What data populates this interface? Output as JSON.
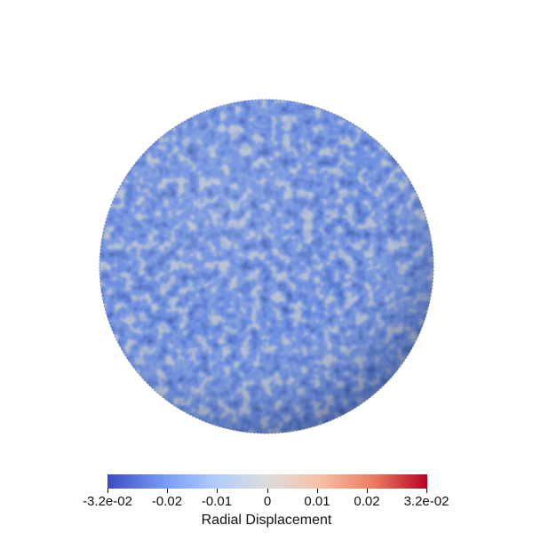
{
  "figure": {
    "type": "3d-surface-render",
    "subject": "sphere",
    "surface_texture": "labyrinthine wrinkle pattern",
    "background_color": "#ffffff"
  },
  "colorbar": {
    "title": "Radial Displacement",
    "orientation": "horizontal",
    "colormap": "Cool to Warm",
    "range": [
      -0.032,
      0.032
    ],
    "tick_values": [
      -0.032,
      -0.02,
      -0.01,
      0,
      0.01,
      0.02,
      0.032
    ],
    "tick_labels": [
      "-3.2e-02",
      "-0.02",
      "-0.01",
      "0",
      "0.01",
      "0.02",
      "3.2e-02"
    ],
    "gradient_colors": [
      "#3b4cc0",
      "#7396f5",
      "#b0cbfc",
      "#dddddd",
      "#f6bfa6",
      "#ea7b60",
      "#b40426"
    ]
  },
  "surface_colors": {
    "base": "#6c8fe0",
    "highlight": "#c2c8cf",
    "shadow": "#2c3f86"
  }
}
